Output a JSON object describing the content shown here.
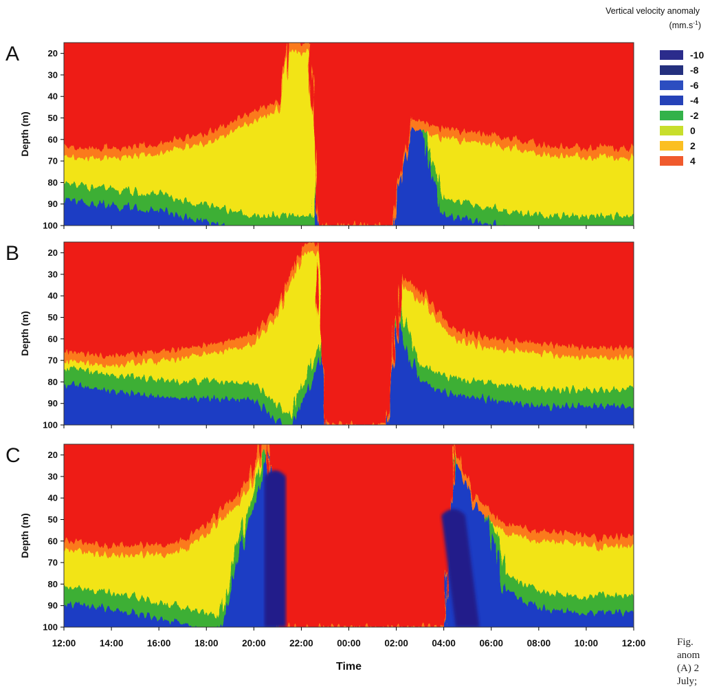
{
  "figure": {
    "caption_lines": [
      "Fig.",
      "anom",
      "(A) 2",
      "July;"
    ]
  },
  "chart_data": [
    {
      "type": "heatmap",
      "panel_label": "A",
      "ylabel": "Depth (m)",
      "y_ticks": [
        20,
        30,
        40,
        50,
        60,
        70,
        80,
        90,
        100
      ],
      "ylim": [
        100,
        15
      ],
      "x_ticks": [
        "12:00",
        "14:00",
        "16:00",
        "18:00",
        "20:00",
        "22:00",
        "00:00",
        "02:00",
        "04:00",
        "06:00",
        "08:00",
        "10:00",
        "12:00"
      ],
      "x_tick_labels_shown": false,
      "xlim_hours_from_start": [
        0,
        24
      ],
      "surface_zone": [
        [
          0,
          64
        ],
        [
          2,
          64
        ],
        [
          4,
          62
        ],
        [
          6,
          57
        ],
        [
          8,
          47
        ],
        [
          9,
          42
        ],
        [
          9.5,
          15
        ],
        [
          10.3,
          15
        ],
        [
          10.8,
          100
        ],
        [
          12.5,
          100
        ],
        [
          13.8,
          100
        ],
        [
          14.6,
          50
        ],
        [
          16,
          55
        ],
        [
          18,
          58
        ],
        [
          20,
          62
        ],
        [
          22,
          64
        ],
        [
          24,
          64
        ]
      ],
      "deep_zone": [
        [
          0,
          85
        ],
        [
          4,
          90
        ],
        [
          8,
          100
        ],
        [
          10.5,
          100
        ],
        [
          11.2,
          35
        ],
        [
          12,
          25
        ],
        [
          13,
          26
        ],
        [
          14.2,
          28
        ],
        [
          14.8,
          40
        ],
        [
          15.4,
          70
        ],
        [
          16,
          92
        ],
        [
          17.5,
          95
        ],
        [
          20,
          100
        ],
        [
          24,
          100
        ]
      ]
    },
    {
      "type": "heatmap",
      "panel_label": "B",
      "ylabel": "Depth (m)",
      "y_ticks": [
        20,
        30,
        40,
        50,
        60,
        70,
        80,
        90,
        100
      ],
      "ylim": [
        100,
        15
      ],
      "x_ticks": [
        "12:00",
        "14:00",
        "16:00",
        "18:00",
        "20:00",
        "22:00",
        "00:00",
        "02:00",
        "04:00",
        "06:00",
        "08:00",
        "10:00",
        "12:00"
      ],
      "x_tick_labels_shown": false,
      "xlim_hours_from_start": [
        0,
        24
      ],
      "surface_zone": [
        [
          0,
          66
        ],
        [
          2,
          68
        ],
        [
          4,
          66
        ],
        [
          6,
          63
        ],
        [
          8,
          58
        ],
        [
          9,
          45
        ],
        [
          10,
          16
        ],
        [
          10.6,
          15
        ],
        [
          11,
          100
        ],
        [
          13,
          100
        ],
        [
          13.6,
          100
        ],
        [
          14.2,
          30
        ],
        [
          15.2,
          40
        ],
        [
          16.5,
          56
        ],
        [
          18,
          60
        ],
        [
          20,
          62
        ],
        [
          22,
          64
        ],
        [
          24,
          64
        ]
      ],
      "deep_zone": [
        [
          0,
          78
        ],
        [
          4,
          84
        ],
        [
          8,
          85
        ],
        [
          9.5,
          100
        ],
        [
          11,
          60
        ],
        [
          11.7,
          72
        ],
        [
          12.5,
          55
        ],
        [
          13.2,
          30
        ],
        [
          13.7,
          40
        ],
        [
          14.3,
          58
        ],
        [
          15,
          75
        ],
        [
          16,
          82
        ],
        [
          18,
          85
        ],
        [
          20,
          88
        ],
        [
          24,
          88
        ]
      ]
    },
    {
      "type": "heatmap",
      "panel_label": "C",
      "ylabel": "Depth (m)",
      "xlabel": "Time",
      "y_ticks": [
        20,
        30,
        40,
        50,
        60,
        70,
        80,
        90,
        100
      ],
      "ylim": [
        100,
        15
      ],
      "x_ticks": [
        "12:00",
        "14:00",
        "16:00",
        "18:00",
        "20:00",
        "22:00",
        "00:00",
        "02:00",
        "04:00",
        "06:00",
        "08:00",
        "10:00",
        "12:00"
      ],
      "x_tick_labels_shown": true,
      "xlim_hours_from_start": [
        0,
        24
      ],
      "surface_zone": [
        [
          0,
          60
        ],
        [
          2,
          62
        ],
        [
          4,
          62
        ],
        [
          5,
          60
        ],
        [
          6,
          52
        ],
        [
          7,
          42
        ],
        [
          7.8,
          32
        ],
        [
          8.3,
          15
        ],
        [
          8.6,
          15
        ],
        [
          9,
          100
        ],
        [
          16,
          100
        ],
        [
          16.4,
          15
        ],
        [
          17.2,
          38
        ],
        [
          18.5,
          52
        ],
        [
          20,
          55
        ],
        [
          22,
          58
        ],
        [
          24,
          58
        ]
      ],
      "deep_zone": [
        [
          0,
          85
        ],
        [
          3,
          90
        ],
        [
          5,
          95
        ],
        [
          6.5,
          100
        ],
        [
          8.6,
          15
        ],
        [
          9.5,
          15
        ],
        [
          11,
          75
        ],
        [
          12,
          82
        ],
        [
          14,
          80
        ],
        [
          15.5,
          78
        ],
        [
          16.6,
          15
        ],
        [
          17.4,
          30
        ],
        [
          18.6,
          80
        ],
        [
          20,
          88
        ],
        [
          22,
          90
        ],
        [
          24,
          90
        ]
      ],
      "dark_bands": [
        {
          "x": 8.9,
          "y_top": 30,
          "y_bottom": 100,
          "half_width_h": 0.45
        },
        {
          "x": 16.4,
          "y_top": 48,
          "y_bottom": 100,
          "half_width_h": 0.5,
          "tilt_h": 0.6
        }
      ]
    }
  ],
  "legend": {
    "title_line1": "Vertical velocity anomaly",
    "title_line2_main": "(mm.s",
    "title_line2_sup": "-1",
    "title_line2_end": ")",
    "entries": [
      {
        "label": "-10",
        "color": "#2b2c8c"
      },
      {
        "label": "-8",
        "color": "#24307e"
      },
      {
        "label": "-6",
        "color": "#2c4ec0"
      },
      {
        "label": "-4",
        "color": "#2542b8"
      },
      {
        "label": "-2",
        "color": "#33b24a"
      },
      {
        "label": "0",
        "color": "#c8de2c"
      },
      {
        "label": "2",
        "color": "#fbbf22"
      },
      {
        "label": "4",
        "color": "#f05a2d"
      }
    ]
  },
  "colors": {
    "red": "#ee1c14",
    "orange": "#fb7a1a",
    "yellow": "#f2e412",
    "green": "#28a83a",
    "blue": "#1f3cc4",
    "navy": "#241f8a"
  }
}
